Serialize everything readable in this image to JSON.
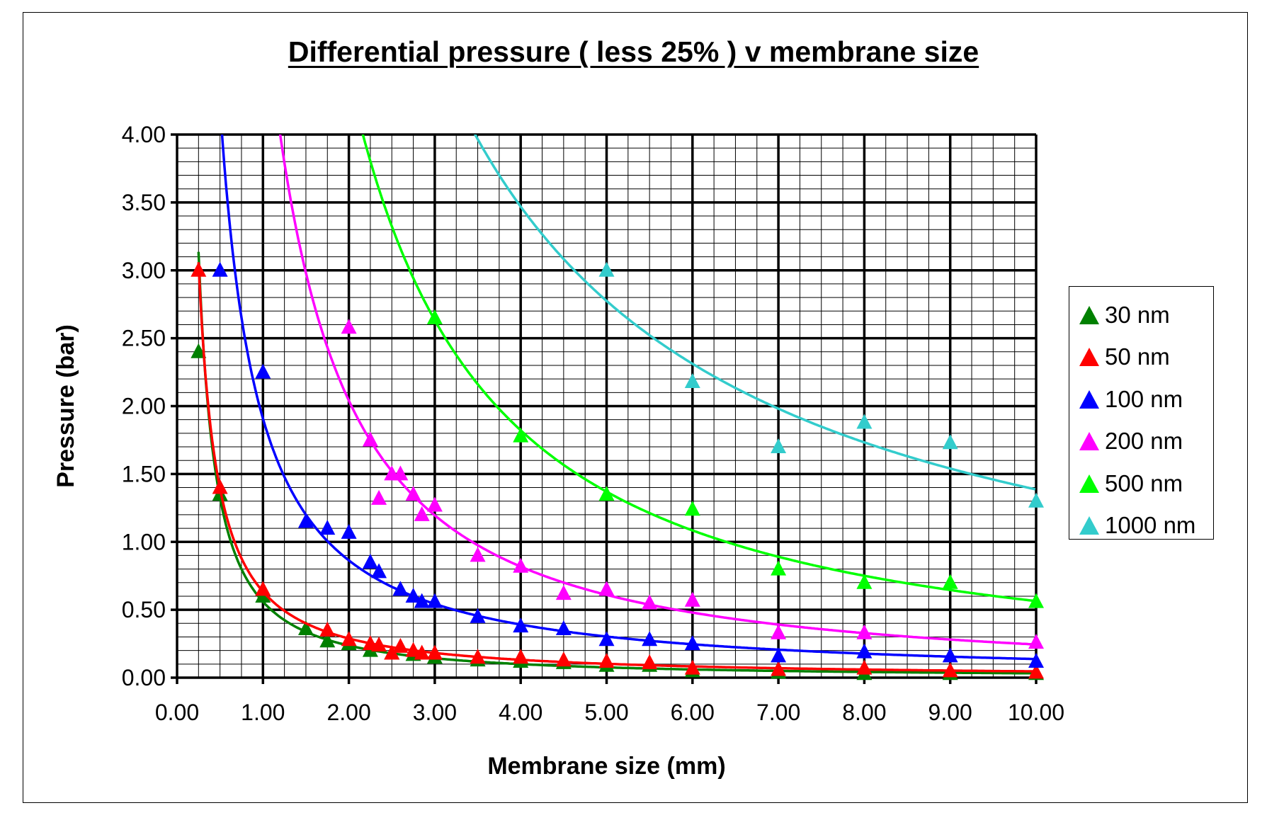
{
  "chart_data": {
    "type": "scatter",
    "title": "Differential pressure ( less 25% ) v membrane size",
    "xlabel": "Membrane size (mm)",
    "ylabel": "Pressure (bar)",
    "xlim": [
      0,
      10
    ],
    "ylim": [
      0,
      4
    ],
    "x_ticks": [
      "0.00",
      "1.00",
      "2.00",
      "3.00",
      "4.00",
      "5.00",
      "6.00",
      "7.00",
      "8.00",
      "9.00",
      "10.00"
    ],
    "y_ticks": [
      "0.00",
      "0.50",
      "1.00",
      "1.50",
      "2.00",
      "2.50",
      "3.00",
      "3.50",
      "4.00"
    ],
    "grid": true,
    "legend": "right",
    "trendline": "power",
    "marker": "triangle",
    "series": [
      {
        "name": "30 nm",
        "color": "#008000",
        "x": [
          0.25,
          0.5,
          1.0,
          1.5,
          1.75,
          2.0,
          2.25,
          2.5,
          2.75,
          3.0,
          3.5,
          4,
          4.5,
          5,
          5.5,
          6,
          7,
          8,
          9,
          10
        ],
        "y": [
          2.4,
          1.35,
          0.6,
          0.36,
          0.27,
          0.25,
          0.2,
          0.18,
          0.17,
          0.15,
          0.13,
          0.12,
          0.11,
          0.09,
          0.09,
          0.05,
          0.04,
          0.03,
          0.03,
          0.03
        ]
      },
      {
        "name": "50 nm",
        "color": "#ff0000",
        "x": [
          0.25,
          0.5,
          1.0,
          1.75,
          2.0,
          2.25,
          2.35,
          2.5,
          2.6,
          2.75,
          2.85,
          3.0,
          3.5,
          4,
          4.5,
          5,
          5.5,
          6,
          7,
          8,
          9,
          10
        ],
        "y": [
          3.0,
          1.4,
          0.65,
          0.35,
          0.28,
          0.25,
          0.24,
          0.18,
          0.23,
          0.2,
          0.18,
          0.18,
          0.15,
          0.15,
          0.13,
          0.12,
          0.11,
          0.07,
          0.06,
          0.07,
          0.05,
          0.04
        ]
      },
      {
        "name": "100 nm",
        "color": "#0000ff",
        "x": [
          0.5,
          1.0,
          1.5,
          1.75,
          2.0,
          2.25,
          2.35,
          2.6,
          2.75,
          2.85,
          3.0,
          3.5,
          4,
          4.5,
          5,
          5.5,
          6,
          7,
          8,
          9,
          10
        ],
        "y": [
          3.0,
          2.25,
          1.15,
          1.1,
          1.07,
          0.85,
          0.78,
          0.65,
          0.6,
          0.56,
          0.56,
          0.45,
          0.38,
          0.36,
          0.28,
          0.28,
          0.25,
          0.16,
          0.19,
          0.16,
          0.12
        ]
      },
      {
        "name": "200 nm",
        "color": "#ff00ff",
        "x": [
          2.0,
          2.25,
          2.35,
          2.5,
          2.6,
          2.75,
          2.85,
          3.0,
          3.5,
          4,
          4.5,
          5,
          5.5,
          6,
          7,
          8,
          10
        ],
        "y": [
          2.58,
          1.75,
          1.32,
          1.5,
          1.5,
          1.35,
          1.2,
          1.27,
          0.9,
          0.82,
          0.62,
          0.65,
          0.55,
          0.57,
          0.33,
          0.33,
          0.26
        ]
      },
      {
        "name": "500 nm",
        "color": "#00ff00",
        "x": [
          3.0,
          4,
          5,
          6,
          7,
          8,
          9,
          10
        ],
        "y": [
          2.65,
          1.78,
          1.35,
          1.24,
          0.8,
          0.7,
          0.7,
          0.56
        ]
      },
      {
        "name": "1000 nm",
        "color": "#33cccc",
        "x": [
          5,
          6,
          7,
          8,
          9,
          10
        ],
        "y": [
          3.0,
          2.18,
          1.7,
          1.88,
          1.73,
          1.3
        ]
      }
    ]
  }
}
